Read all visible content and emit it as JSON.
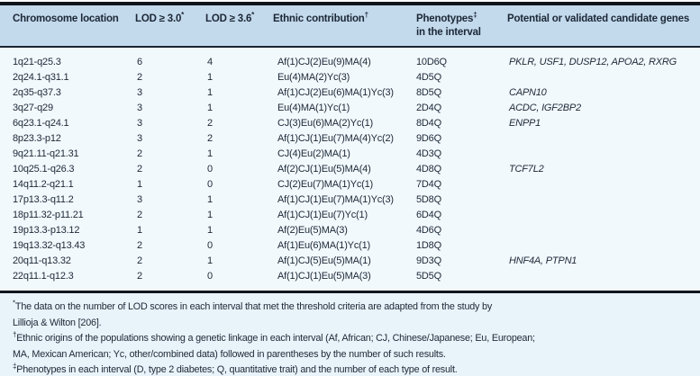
{
  "colors": {
    "header_bg": "#c3d9ec",
    "body_bg": "#f2f9fd",
    "footnote_bg": "#e9f3fa",
    "text": "#1c2836",
    "top_rule": "#0e141a",
    "header_rule": "#1b2531",
    "mid_rule": "#10161c"
  },
  "header": {
    "columns": [
      {
        "label": "Chromosome location",
        "sup": "",
        "line2": ""
      },
      {
        "label": "LOD ≥ 3.0",
        "sup": "*",
        "line2": ""
      },
      {
        "label": "LOD ≥ 3.6",
        "sup": "*",
        "line2": ""
      },
      {
        "label": "Ethnic contribution",
        "sup": "†",
        "line2": ""
      },
      {
        "label": "Phenotypes",
        "sup": "‡",
        "line2": "in the interval"
      },
      {
        "label": "Potential or validated candidate genes",
        "sup": "",
        "line2": ""
      }
    ]
  },
  "rows": [
    {
      "location": "1q21-q25.3",
      "lod30": "6",
      "lod36": "4",
      "ethnic": "Af(1)CJ(2)Eu(9)MA(4)",
      "phenotypes": "10D6Q",
      "genes": "PKLR, USF1, DUSP12, APOA2, RXRG"
    },
    {
      "location": "2q24.1-q31.1",
      "lod30": "2",
      "lod36": "1",
      "ethnic": "Eu(4)MA(2)Yc(3)",
      "phenotypes": "4D5Q",
      "genes": ""
    },
    {
      "location": "2q35-q37.3",
      "lod30": "3",
      "lod36": "1",
      "ethnic": "Af(1)CJ(2)Eu(6)MA(1)Yc(3)",
      "phenotypes": "8D5Q",
      "genes": "CAPN10"
    },
    {
      "location": "3q27-q29",
      "lod30": "3",
      "lod36": "1",
      "ethnic": "Eu(4)MA(1)Yc(1)",
      "phenotypes": "2D4Q",
      "genes": "ACDC, IGF2BP2"
    },
    {
      "location": "6q23.1-q24.1",
      "lod30": "3",
      "lod36": "2",
      "ethnic": "CJ(3)Eu(6)MA(2)Yc(1)",
      "phenotypes": "8D4Q",
      "genes": "ENPP1"
    },
    {
      "location": "8p23.3-p12",
      "lod30": "3",
      "lod36": "2",
      "ethnic": "Af(1)CJ(1)Eu(7)MA(4)Yc(2)",
      "phenotypes": "9D6Q",
      "genes": ""
    },
    {
      "location": "9q21.11-q21.31",
      "lod30": "2",
      "lod36": "1",
      "ethnic": "CJ(4)Eu(2)MA(1)",
      "phenotypes": "4D3Q",
      "genes": ""
    },
    {
      "location": "10q25.1-q26.3",
      "lod30": "2",
      "lod36": "0",
      "ethnic": "Af(2)CJ(1)Eu(5)MA(4)",
      "phenotypes": "4D8Q",
      "genes": "TCF7L2"
    },
    {
      "location": "14q11.2-q21.1",
      "lod30": "1",
      "lod36": "0",
      "ethnic": "CJ(2)Eu(7)MA(1)Yc(1)",
      "phenotypes": "7D4Q",
      "genes": ""
    },
    {
      "location": "17p13.3-q11.2",
      "lod30": "3",
      "lod36": "1",
      "ethnic": "Af(1)CJ(1)Eu(7)MA(1)Yc(3)",
      "phenotypes": "5D8Q",
      "genes": ""
    },
    {
      "location": "18p11.32-p11.21",
      "lod30": "2",
      "lod36": "1",
      "ethnic": "Af(1)CJ(1)Eu(7)Yc(1)",
      "phenotypes": "6D4Q",
      "genes": ""
    },
    {
      "location": "19p13.3-p13.12",
      "lod30": "1",
      "lod36": "1",
      "ethnic": "Af(2)Eu(5)MA(3)",
      "phenotypes": "4D6Q",
      "genes": ""
    },
    {
      "location": "19q13.32-q13.43",
      "lod30": "2",
      "lod36": "0",
      "ethnic": "Af(1)Eu(6)MA(1)Yc(1)",
      "phenotypes": "1D8Q",
      "genes": ""
    },
    {
      "location": "20q11-q13.32",
      "lod30": "2",
      "lod36": "1",
      "ethnic": "Af(1)CJ(5)Eu(5)MA(1)",
      "phenotypes": "9D3Q",
      "genes": "HNF4A, PTPN1"
    },
    {
      "location": "22q11.1-q12.3",
      "lod30": "2",
      "lod36": "0",
      "ethnic": "Af(1)CJ(1)Eu(5)MA(3)",
      "phenotypes": "5D5Q",
      "genes": ""
    }
  ],
  "footnotes": [
    {
      "marker": "*",
      "lines": [
        "The data on the number of LOD scores in each interval that met the threshold criteria are adapted from the study by",
        "Lillioja & Wilton [206]."
      ]
    },
    {
      "marker": "†",
      "lines": [
        "Ethnic origins of the populations showing a genetic linkage in each interval (Af, African; CJ, Chinese/Japanese; Eu, European;",
        "MA, Mexican American; Yc, other/combined data) followed in parentheses by the number of such results."
      ]
    },
    {
      "marker": "‡",
      "lines": [
        "Phenotypes in each interval (D, type 2 diabetes; Q, quantitative trait) and the number of each type of result."
      ]
    }
  ]
}
